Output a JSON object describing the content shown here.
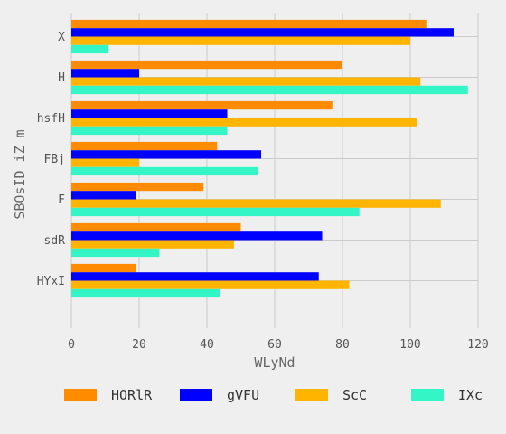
{
  "chart_data": {
    "type": "bar",
    "orientation": "horizontal",
    "xlabel": "WLyNd",
    "ylabel": "SBOsID iZ m",
    "xlim": [
      0,
      120
    ],
    "xticks": [
      0,
      20,
      40,
      60,
      80,
      100,
      120
    ],
    "grid": true,
    "legend_position": "bottom",
    "categories": [
      "X",
      "H",
      "hsfH",
      "FBj",
      "F",
      "sdR",
      "HYxI"
    ],
    "series": [
      {
        "name": "HORlR",
        "color": "#ff8c00",
        "values": [
          105,
          80,
          77,
          43,
          39,
          50,
          19
        ]
      },
      {
        "name": "gVFU",
        "color": "#0000ff",
        "values": [
          113,
          20,
          46,
          56,
          19,
          74,
          73
        ]
      },
      {
        "name": "ScC",
        "color": "#ffb400",
        "values": [
          100,
          103,
          102,
          20,
          109,
          48,
          82
        ]
      },
      {
        "name": "IXc",
        "color": "#33f5c5",
        "values": [
          11,
          117,
          46,
          55,
          85,
          26,
          44
        ]
      }
    ]
  }
}
